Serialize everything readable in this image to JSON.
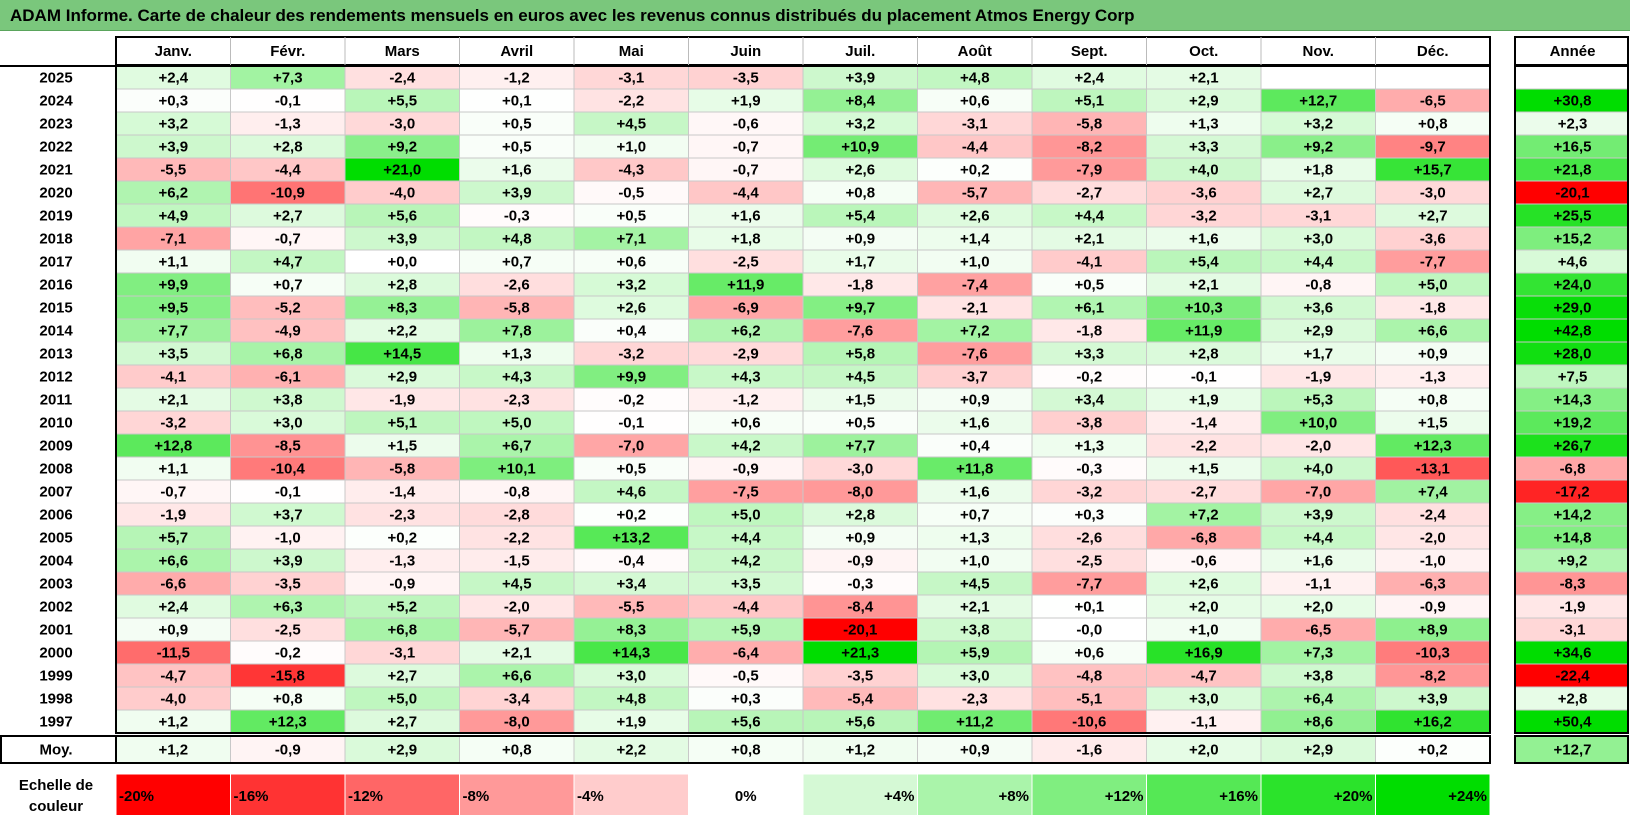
{
  "title": "ADAM Informe. Carte de chaleur des rendements mensuels en euros avec les revenus connus distribués du placement Atmos Energy Corp",
  "colors": {
    "title_bg": "#7ac77c",
    "negative_max": "#ff0000",
    "neutral": "#ffffff",
    "positive_max": "#00dd00"
  },
  "chart_data": {
    "type": "heatmap",
    "months": [
      "Janv.",
      "Févr.",
      "Mars",
      "Avril",
      "Mai",
      "Juin",
      "Juil.",
      "Août",
      "Sept.",
      "Oct.",
      "Nov.",
      "Déc."
    ],
    "year_header": "Année",
    "rows": [
      {
        "year": "2025",
        "values": [
          "+2,4",
          "+7,3",
          "-2,4",
          "-1,2",
          "-3,1",
          "-3,5",
          "+3,9",
          "+4,8",
          "+2,4",
          "+2,1",
          "",
          ""
        ],
        "annual": ""
      },
      {
        "year": "2024",
        "values": [
          "+0,3",
          "-0,1",
          "+5,5",
          "+0,1",
          "-2,2",
          "+1,9",
          "+8,4",
          "+0,6",
          "+5,1",
          "+2,9",
          "+12,7",
          "-6,5"
        ],
        "annual": "+30,8"
      },
      {
        "year": "2023",
        "values": [
          "+3,2",
          "-1,3",
          "-3,0",
          "+0,5",
          "+4,5",
          "-0,6",
          "+3,2",
          "-3,1",
          "-5,8",
          "+1,3",
          "+3,2",
          "+0,8"
        ],
        "annual": "+2,3"
      },
      {
        "year": "2022",
        "values": [
          "+3,9",
          "+2,8",
          "+9,2",
          "+0,5",
          "+1,0",
          "-0,7",
          "+10,9",
          "-4,4",
          "-8,2",
          "+3,3",
          "+9,2",
          "-9,7"
        ],
        "annual": "+16,5"
      },
      {
        "year": "2021",
        "values": [
          "-5,5",
          "-4,4",
          "+21,0",
          "+1,6",
          "-4,3",
          "-0,7",
          "+2,6",
          "+0,2",
          "-7,9",
          "+4,0",
          "+1,8",
          "+15,7"
        ],
        "annual": "+21,8"
      },
      {
        "year": "2020",
        "values": [
          "+6,2",
          "-10,9",
          "-4,0",
          "+3,9",
          "-0,5",
          "-4,4",
          "+0,8",
          "-5,7",
          "-2,7",
          "-3,6",
          "+2,7",
          "-3,0"
        ],
        "annual": "-20,1"
      },
      {
        "year": "2019",
        "values": [
          "+4,9",
          "+2,7",
          "+5,6",
          "-0,3",
          "+0,5",
          "+1,6",
          "+5,4",
          "+2,6",
          "+4,4",
          "-3,2",
          "-3,1",
          "+2,7"
        ],
        "annual": "+25,5"
      },
      {
        "year": "2018",
        "values": [
          "-7,1",
          "-0,7",
          "+3,9",
          "+4,8",
          "+7,1",
          "+1,8",
          "+0,9",
          "+1,4",
          "+2,1",
          "+1,6",
          "+3,0",
          "-3,6"
        ],
        "annual": "+15,2"
      },
      {
        "year": "2017",
        "values": [
          "+1,1",
          "+4,7",
          "+0,0",
          "+0,7",
          "+0,6",
          "-2,5",
          "+1,7",
          "+1,0",
          "-4,1",
          "+5,4",
          "+4,4",
          "-7,7"
        ],
        "annual": "+4,6"
      },
      {
        "year": "2016",
        "values": [
          "+9,9",
          "+0,7",
          "+2,8",
          "-2,6",
          "+3,2",
          "+11,9",
          "-1,8",
          "-7,4",
          "+0,5",
          "+2,1",
          "-0,8",
          "+5,0"
        ],
        "annual": "+24,0"
      },
      {
        "year": "2015",
        "values": [
          "+9,5",
          "-5,2",
          "+8,3",
          "-5,8",
          "+2,6",
          "-6,9",
          "+9,7",
          "-2,1",
          "+6,1",
          "+10,3",
          "+3,6",
          "-1,8"
        ],
        "annual": "+29,0"
      },
      {
        "year": "2014",
        "values": [
          "+7,7",
          "-4,9",
          "+2,2",
          "+7,8",
          "+0,4",
          "+6,2",
          "-7,6",
          "+7,2",
          "-1,8",
          "+11,9",
          "+2,9",
          "+6,6"
        ],
        "annual": "+42,8"
      },
      {
        "year": "2013",
        "values": [
          "+3,5",
          "+6,8",
          "+14,5",
          "+1,3",
          "-3,2",
          "-2,9",
          "+5,8",
          "-7,6",
          "+3,3",
          "+2,8",
          "+1,7",
          "+0,9"
        ],
        "annual": "+28,0"
      },
      {
        "year": "2012",
        "values": [
          "-4,1",
          "-6,1",
          "+2,9",
          "+4,3",
          "+9,9",
          "+4,3",
          "+4,5",
          "-3,7",
          "-0,2",
          "-0,1",
          "-1,9",
          "-1,3"
        ],
        "annual": "+7,5"
      },
      {
        "year": "2011",
        "values": [
          "+2,1",
          "+3,8",
          "-1,9",
          "-2,3",
          "-0,2",
          "-1,2",
          "+1,5",
          "+0,9",
          "+3,4",
          "+1,9",
          "+5,3",
          "+0,8"
        ],
        "annual": "+14,3"
      },
      {
        "year": "2010",
        "values": [
          "-3,2",
          "+3,0",
          "+5,1",
          "+5,0",
          "-0,1",
          "+0,6",
          "+0,5",
          "+1,6",
          "-3,8",
          "-1,4",
          "+10,0",
          "+1,5"
        ],
        "annual": "+19,2"
      },
      {
        "year": "2009",
        "values": [
          "+12,8",
          "-8,5",
          "+1,5",
          "+6,7",
          "-7,0",
          "+4,2",
          "+7,7",
          "+0,4",
          "+1,3",
          "-2,2",
          "-2,0",
          "+12,3"
        ],
        "annual": "+26,7"
      },
      {
        "year": "2008",
        "values": [
          "+1,1",
          "-10,4",
          "-5,8",
          "+10,1",
          "+0,5",
          "-0,9",
          "-3,0",
          "+11,8",
          "-0,3",
          "+1,5",
          "+4,0",
          "-13,1"
        ],
        "annual": "-6,8"
      },
      {
        "year": "2007",
        "values": [
          "-0,7",
          "-0,1",
          "-1,4",
          "-0,8",
          "+4,6",
          "-7,5",
          "-8,0",
          "+1,6",
          "-3,2",
          "-2,7",
          "-7,0",
          "+7,4"
        ],
        "annual": "-17,2"
      },
      {
        "year": "2006",
        "values": [
          "-1,9",
          "+3,7",
          "-2,3",
          "-2,8",
          "+0,2",
          "+5,0",
          "+2,8",
          "+0,7",
          "+0,3",
          "+7,2",
          "+3,9",
          "-2,4"
        ],
        "annual": "+14,2"
      },
      {
        "year": "2005",
        "values": [
          "+5,7",
          "-1,0",
          "+0,2",
          "-2,2",
          "+13,2",
          "+4,4",
          "+0,9",
          "+1,3",
          "-2,6",
          "-6,8",
          "+4,4",
          "-2,0"
        ],
        "annual": "+14,8"
      },
      {
        "year": "2004",
        "values": [
          "+6,6",
          "+3,9",
          "-1,3",
          "-1,5",
          "-0,4",
          "+4,2",
          "-0,9",
          "+1,0",
          "-2,5",
          "-0,6",
          "+1,6",
          "-1,0"
        ],
        "annual": "+9,2"
      },
      {
        "year": "2003",
        "values": [
          "-6,6",
          "-3,5",
          "-0,9",
          "+4,5",
          "+3,4",
          "+3,5",
          "-0,3",
          "+4,5",
          "-7,7",
          "+2,6",
          "-1,1",
          "-6,3"
        ],
        "annual": "-8,3"
      },
      {
        "year": "2002",
        "values": [
          "+2,4",
          "+6,3",
          "+5,2",
          "-2,0",
          "-5,5",
          "-4,4",
          "-8,4",
          "+2,1",
          "+0,1",
          "+2,0",
          "+2,0",
          "-0,9"
        ],
        "annual": "-1,9"
      },
      {
        "year": "2001",
        "values": [
          "+0,9",
          "-2,5",
          "+6,8",
          "-5,7",
          "+8,3",
          "+5,9",
          "-20,1",
          "+3,8",
          "-0,0",
          "+1,0",
          "-6,5",
          "+8,9"
        ],
        "annual": "-3,1"
      },
      {
        "year": "2000",
        "values": [
          "-11,5",
          "-0,2",
          "-3,1",
          "+2,1",
          "+14,3",
          "-6,4",
          "+21,3",
          "+5,9",
          "+0,6",
          "+16,9",
          "+7,3",
          "-10,3"
        ],
        "annual": "+34,6"
      },
      {
        "year": "1999",
        "values": [
          "-4,7",
          "-15,8",
          "+2,7",
          "+6,6",
          "+3,0",
          "-0,5",
          "-3,5",
          "+3,0",
          "-4,8",
          "-4,7",
          "+3,8",
          "-8,2"
        ],
        "annual": "-22,4"
      },
      {
        "year": "1998",
        "values": [
          "-4,0",
          "+0,8",
          "+5,0",
          "-3,4",
          "+4,8",
          "+0,3",
          "-5,4",
          "-2,3",
          "-5,1",
          "+3,0",
          "+6,4",
          "+3,9"
        ],
        "annual": "+2,8"
      },
      {
        "year": "1997",
        "values": [
          "+1,2",
          "+12,3",
          "+2,7",
          "-8,0",
          "+1,9",
          "+5,6",
          "+5,6",
          "+11,2",
          "-10,6",
          "-1,1",
          "+8,6",
          "+16,2"
        ],
        "annual": "+50,4"
      }
    ],
    "average": {
      "label": "Moy.",
      "values": [
        "+1,2",
        "-0,9",
        "+2,9",
        "+0,8",
        "+2,2",
        "+0,8",
        "+1,2",
        "+0,9",
        "-1,6",
        "+2,0",
        "+2,9",
        "+0,2"
      ],
      "annual": "+12,7"
    },
    "scale": {
      "label_line1": "Echelle de",
      "label_line2": "couleur",
      "items": [
        "-20%",
        "-16%",
        "-12%",
        "-8%",
        "-4%",
        "0%",
        "+4%",
        "+8%",
        "+12%",
        "+16%",
        "+20%",
        "+24%"
      ]
    }
  }
}
